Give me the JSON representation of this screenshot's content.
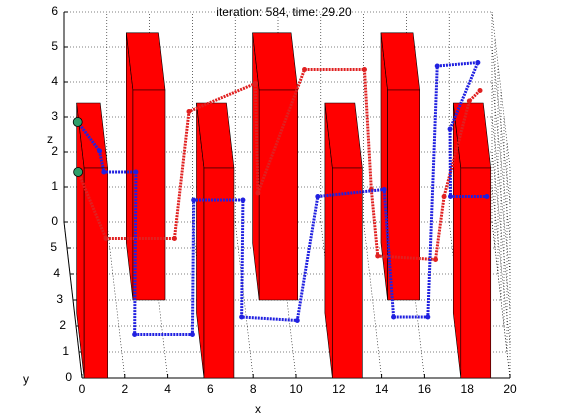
{
  "chart_data": {
    "type": "line3d",
    "title": "iteration: 584, time: 29.20",
    "xlabel": "x",
    "ylabel": "y",
    "zlabel": "z",
    "xlim": [
      0,
      20
    ],
    "ylim": [
      0,
      6
    ],
    "zlim": [
      0,
      6
    ],
    "xticks": [
      0,
      2,
      4,
      6,
      8,
      10,
      12,
      14,
      16,
      18,
      20
    ],
    "yticks": [
      0,
      1,
      2,
      3,
      4,
      5
    ],
    "zticks": [
      0,
      1,
      2,
      3,
      4,
      5,
      6
    ],
    "grid": true,
    "obstacle_color": "#ff0000",
    "marker_color": "#2e9e6a",
    "obstacles": [
      {
        "x": [
          2.8,
          4.3
        ],
        "y": [
          3,
          5.2
        ],
        "z": [
          0,
          6
        ]
      },
      {
        "x": [
          8.7,
          10.5
        ],
        "y": [
          3,
          5.2
        ],
        "z": [
          0,
          6
        ]
      },
      {
        "x": [
          14.7,
          16.2
        ],
        "y": [
          3,
          5.2
        ],
        "z": [
          0,
          6
        ]
      },
      {
        "x": [
          0.1,
          1.2
        ],
        "y": [
          0,
          2.5
        ],
        "z": [
          0,
          6
        ]
      },
      {
        "x": [
          5.7,
          7.1
        ],
        "y": [
          0,
          2.5
        ],
        "z": [
          0,
          6
        ]
      },
      {
        "x": [
          11.7,
          13.1
        ],
        "y": [
          0,
          2.5
        ],
        "z": [
          0,
          6
        ]
      },
      {
        "x": [
          17.7,
          19.1
        ],
        "y": [
          0,
          2.5
        ],
        "z": [
          0,
          6
        ]
      }
    ],
    "series": [
      {
        "color": "#e02020",
        "x": [
          0.1,
          1.4,
          4.6,
          5.7,
          8.8,
          8.5,
          11.1,
          13.9,
          13.8,
          14.1,
          16.8,
          17.2,
          18.8,
          19.3
        ],
        "y": [
          2,
          2,
          2,
          5,
          5,
          2,
          5,
          5,
          2,
          2,
          2,
          2,
          5,
          5
        ],
        "z": [
          4.4,
          2.5,
          2.5,
          3.9,
          4.7,
          3.8,
          5.1,
          5.1,
          3.9,
          2.0,
          1.9,
          3.7,
          4.2,
          4.5
        ]
      },
      {
        "color": "#2020e0",
        "x": [
          0.5,
          1.1,
          1.3,
          2.8,
          2.6,
          5.3,
          5.5,
          7.8,
          7.6,
          10.2,
          11.3,
          14.4,
          14.7,
          16.3,
          17.3,
          19.2,
          17.9,
          17.5,
          19.2
        ],
        "y": [
          5,
          2,
          2,
          2,
          1,
          1,
          2,
          2,
          1,
          1,
          2,
          2,
          1,
          1,
          5,
          5,
          5,
          2,
          2
        ],
        "z": [
          3.6,
          5.0,
          4.4,
          4.4,
          0.5,
          0.5,
          3.6,
          3.6,
          1.0,
          0.9,
          3.7,
          3.9,
          1.0,
          1.0,
          5.2,
          5.3,
          3.4,
          3.7,
          3.7
        ]
      }
    ]
  }
}
